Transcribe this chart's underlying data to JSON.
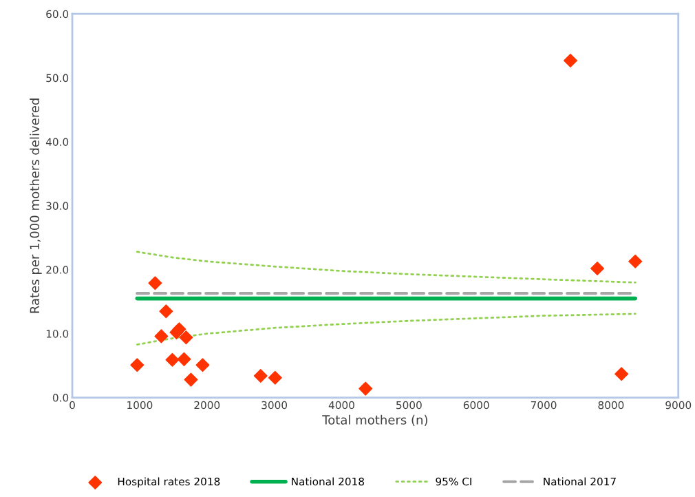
{
  "chart_data": {
    "type": "scatter",
    "xlabel": "Total mothers (n)",
    "ylabel": "Rates per 1,000 mothers delivered",
    "xlim": [
      0,
      9000
    ],
    "xticks": [
      0,
      1000,
      2000,
      3000,
      4000,
      5000,
      6000,
      7000,
      8000,
      9000
    ],
    "ylim": [
      0,
      60
    ],
    "yticks": [
      {
        "value": 0,
        "label": "0.0"
      },
      {
        "value": 10,
        "label": "10.0"
      },
      {
        "value": 20,
        "label": "20.0"
      },
      {
        "value": 30,
        "label": "30.0"
      },
      {
        "value": 40,
        "label": "40.0"
      },
      {
        "value": 50,
        "label": "50.0"
      },
      {
        "value": 60,
        "label": "60.0"
      }
    ],
    "grid": false,
    "legend": "bottom",
    "series": [
      {
        "name": "Hospital rates 2018",
        "marker": "diamond",
        "color": "#ff3300",
        "x": [
          963,
          1230,
          1322,
          1393,
          1486,
          1547,
          1588,
          1660,
          1690,
          1762,
          1936,
          2797,
          3012,
          4355,
          7398,
          7797,
          8156,
          8361
        ],
        "values": [
          5.1,
          17.9,
          9.6,
          13.5,
          5.9,
          10.2,
          10.7,
          6.0,
          9.4,
          2.8,
          5.1,
          3.4,
          3.1,
          1.4,
          52.7,
          20.2,
          3.7,
          21.3
        ]
      },
      {
        "name": "National 2018",
        "type": "line",
        "line_style": "solid",
        "color": "#00b050",
        "x": [
          963,
          8361
        ],
        "values": [
          15.5,
          15.5
        ]
      },
      {
        "name": "95% CI",
        "type": "line",
        "line_style": "dotted",
        "color": "#92d050",
        "x": [
          963,
          1500,
          2000,
          3000,
          4000,
          5000,
          6000,
          7000,
          8361
        ],
        "values": [
          22.8,
          21.9,
          21.3,
          20.5,
          19.8,
          19.3,
          18.9,
          18.5,
          18.0
        ]
      },
      {
        "type": "line",
        "line_style": "dotted",
        "color": "#92d050",
        "x": [
          963,
          1500,
          2000,
          3000,
          4000,
          5000,
          6000,
          7000,
          8361
        ],
        "values": [
          8.3,
          9.3,
          10.0,
          10.9,
          11.5,
          12.0,
          12.4,
          12.8,
          13.1
        ]
      },
      {
        "name": "National 2017",
        "type": "line",
        "line_style": "dashed",
        "color": "#a6a6a6",
        "x": [
          963,
          8361
        ],
        "values": [
          16.3,
          16.3
        ]
      }
    ]
  }
}
